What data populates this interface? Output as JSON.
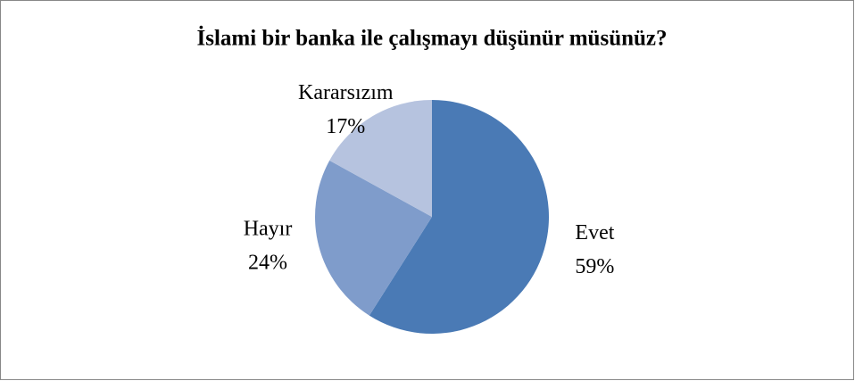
{
  "chart_data": {
    "type": "pie",
    "title": "İslami bir banka ile çalışmayı düşünür müsünüz?",
    "categories": [
      "Evet",
      "Hayır",
      "Kararsızım"
    ],
    "values": [
      59,
      24,
      17
    ],
    "value_labels": [
      "59%",
      "24%",
      "17%"
    ],
    "colors": [
      "#4a7ab5",
      "#7f9ccb",
      "#b6c3df"
    ]
  }
}
